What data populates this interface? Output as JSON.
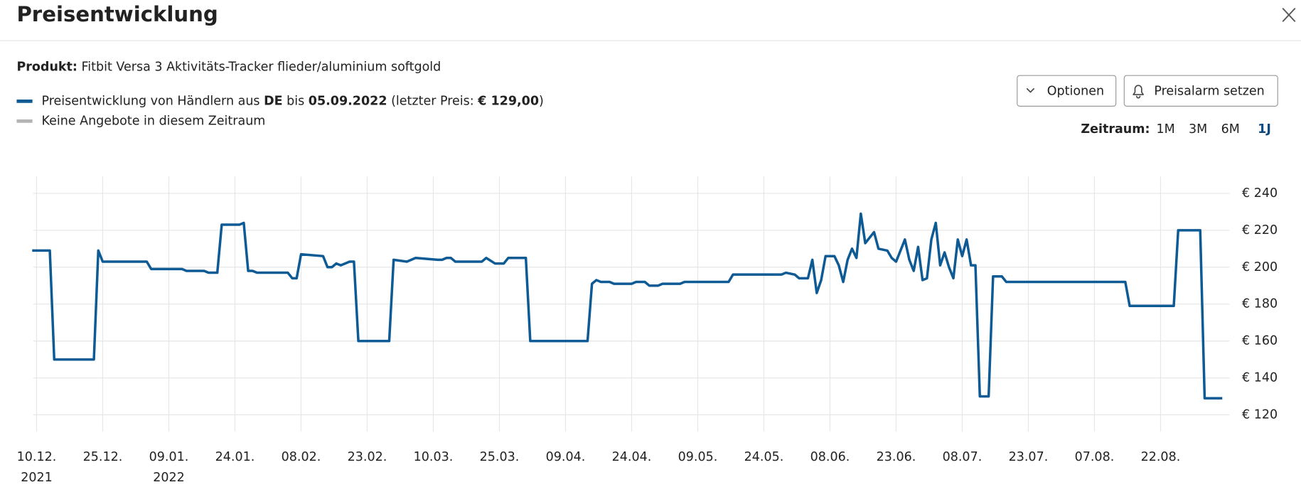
{
  "header": {
    "title": "Preisentwicklung"
  },
  "product": {
    "label": "Produkt:",
    "name": "Fitbit Versa 3 Aktivitäts-Tracker flieder/aluminium softgold"
  },
  "buttons": [
    "Optionen",
    "Preisalarm setzen"
  ],
  "period": {
    "label": "Zeitraum:",
    "options": [
      "1M",
      "3M",
      "6M",
      "1J"
    ],
    "selected": "1J"
  },
  "chart_data": {
    "type": "line",
    "legend": [
      {
        "color": "#0e5a94",
        "parts": [
          {
            "text": "Preisentwicklung von Händlern aus ",
            "bold": false
          },
          {
            "text": "DE",
            "bold": true
          },
          {
            "text": " bis ",
            "bold": false
          },
          {
            "text": "05.09.2022",
            "bold": true
          },
          {
            "text": " (letzter Preis: ",
            "bold": false
          },
          {
            "text": "€ 129,00",
            "bold": true
          },
          {
            "text": ")",
            "bold": false
          }
        ]
      },
      {
        "color": "#b4b4b4",
        "parts": [
          {
            "text": "Keine Angebote in diesem Zeitraum",
            "bold": false
          }
        ]
      }
    ],
    "color": "#0e5a94",
    "x": [
      "2021-12-09",
      "2021-12-13",
      "2021-12-14",
      "2021-12-23",
      "2021-12-24",
      "2021-12-25",
      "2022-01-04",
      "2022-01-05",
      "2022-01-12",
      "2022-01-13",
      "2022-01-17",
      "2022-01-18",
      "2022-01-20",
      "2022-01-21",
      "2022-01-25",
      "2022-01-26",
      "2022-01-27",
      "2022-01-28",
      "2022-01-29",
      "2022-02-05",
      "2022-02-06",
      "2022-02-07",
      "2022-02-08",
      "2022-02-13",
      "2022-02-14",
      "2022-02-15",
      "2022-02-16",
      "2022-02-17",
      "2022-02-18",
      "2022-02-19",
      "2022-02-20",
      "2022-02-21",
      "2022-02-28",
      "2022-03-01",
      "2022-03-04",
      "2022-03-06",
      "2022-03-11",
      "2022-03-12",
      "2022-03-13",
      "2022-03-14",
      "2022-03-15",
      "2022-03-21",
      "2022-03-22",
      "2022-03-24",
      "2022-03-26",
      "2022-03-27",
      "2022-03-31",
      "2022-04-01",
      "2022-04-14",
      "2022-04-15",
      "2022-04-16",
      "2022-04-17",
      "2022-04-19",
      "2022-04-20",
      "2022-04-24",
      "2022-04-25",
      "2022-04-27",
      "2022-04-28",
      "2022-04-30",
      "2022-05-01",
      "2022-05-05",
      "2022-05-06",
      "2022-05-16",
      "2022-05-17",
      "2022-05-28",
      "2022-05-29",
      "2022-05-31",
      "2022-06-01",
      "2022-06-03",
      "2022-06-04",
      "2022-06-05",
      "2022-06-06",
      "2022-06-07",
      "2022-06-09",
      "2022-06-10",
      "2022-06-11",
      "2022-06-12",
      "2022-06-13",
      "2022-06-14",
      "2022-06-15",
      "2022-06-16",
      "2022-06-18",
      "2022-06-19",
      "2022-06-21",
      "2022-06-22",
      "2022-06-23",
      "2022-06-25",
      "2022-06-26",
      "2022-06-27",
      "2022-06-28",
      "2022-06-29",
      "2022-06-30",
      "2022-07-01",
      "2022-07-02",
      "2022-07-03",
      "2022-07-04",
      "2022-07-05",
      "2022-07-06",
      "2022-07-07",
      "2022-07-08",
      "2022-07-09",
      "2022-07-10",
      "2022-07-11",
      "2022-07-12",
      "2022-07-14",
      "2022-07-15",
      "2022-07-17",
      "2022-07-18",
      "2022-08-14",
      "2022-08-15",
      "2022-08-25",
      "2022-08-26",
      "2022-08-31",
      "2022-09-01",
      "2022-09-05"
    ],
    "values": [
      209,
      209,
      150,
      150,
      209,
      203,
      203,
      199,
      199,
      198,
      198,
      197,
      197,
      223,
      223,
      224,
      198,
      198,
      197,
      197,
      194,
      194,
      207,
      206,
      200,
      200,
      202,
      201,
      202,
      203,
      203,
      160,
      160,
      204,
      203,
      205,
      204,
      204,
      205,
      205,
      203,
      203,
      205,
      202,
      202,
      205,
      205,
      160,
      160,
      191,
      193,
      192,
      192,
      191,
      191,
      192,
      192,
      190,
      190,
      191,
      191,
      192,
      192,
      196,
      196,
      197,
      196,
      194,
      194,
      204,
      186,
      193,
      206,
      206,
      201,
      192,
      204,
      210,
      205,
      229,
      213,
      219,
      210,
      209,
      205,
      203,
      215,
      204,
      198,
      211,
      193,
      194,
      215,
      224,
      201,
      208,
      200,
      194,
      215,
      206,
      215,
      201,
      201,
      130,
      130,
      195,
      195,
      192,
      192,
      179,
      179,
      220,
      220,
      129,
      129
    ],
    "xlim": [
      "2021-12-09",
      "2022-09-06"
    ],
    "xticks": [
      {
        "value": "2021-12-10",
        "label": "10.12.",
        "year": "2021"
      },
      {
        "value": "2021-12-25",
        "label": "25.12."
      },
      {
        "value": "2022-01-09",
        "label": "09.01.",
        "year": "2022"
      },
      {
        "value": "2022-01-24",
        "label": "24.01."
      },
      {
        "value": "2022-02-08",
        "label": "08.02."
      },
      {
        "value": "2022-02-23",
        "label": "23.02."
      },
      {
        "value": "2022-03-10",
        "label": "10.03."
      },
      {
        "value": "2022-03-25",
        "label": "25.03."
      },
      {
        "value": "2022-04-09",
        "label": "09.04."
      },
      {
        "value": "2022-04-24",
        "label": "24.04."
      },
      {
        "value": "2022-05-09",
        "label": "09.05."
      },
      {
        "value": "2022-05-24",
        "label": "24.05."
      },
      {
        "value": "2022-06-08",
        "label": "08.06."
      },
      {
        "value": "2022-06-23",
        "label": "23.06."
      },
      {
        "value": "2022-07-08",
        "label": "08.07."
      },
      {
        "value": "2022-07-23",
        "label": "23.07."
      },
      {
        "value": "2022-08-07",
        "label": "07.08."
      },
      {
        "value": "2022-08-22",
        "label": "22.08."
      }
    ],
    "ylim": [
      111,
      249
    ],
    "yticks": [
      {
        "value": 120,
        "label": "€ 120"
      },
      {
        "value": 140,
        "label": "€ 140"
      },
      {
        "value": 160,
        "label": "€ 160"
      },
      {
        "value": 180,
        "label": "€ 180"
      },
      {
        "value": 200,
        "label": "€ 200"
      },
      {
        "value": 220,
        "label": "€ 220"
      },
      {
        "value": 240,
        "label": "€ 240"
      }
    ],
    "grid": true
  }
}
